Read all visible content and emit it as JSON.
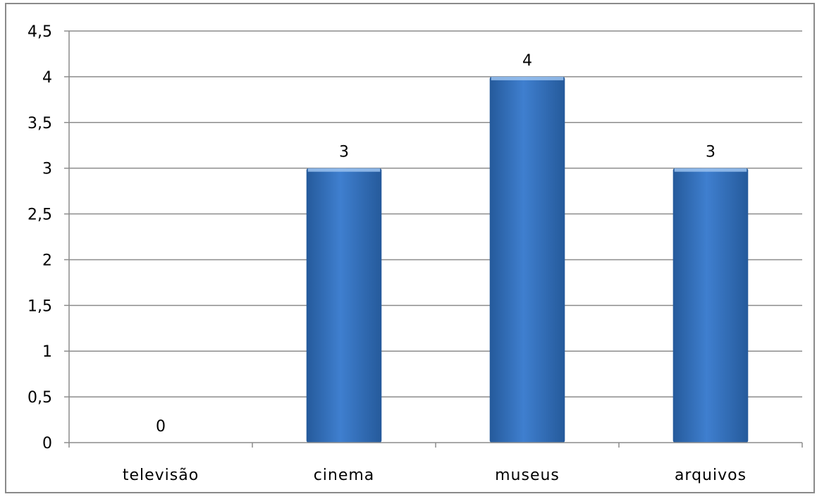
{
  "chart_data": {
    "type": "bar",
    "title": "",
    "xlabel": "",
    "ylabel": "",
    "categories": [
      "televisão",
      "cinema",
      "museus",
      "arquivos"
    ],
    "values": [
      0,
      3,
      4,
      3
    ],
    "data_labels": [
      "0",
      "3",
      "4",
      "3"
    ],
    "ylim": [
      0,
      4.5
    ],
    "yticks": [
      0,
      0.5,
      1,
      1.5,
      2,
      2.5,
      3,
      3.5,
      4,
      4.5
    ],
    "ytick_labels": [
      "0",
      "0,5",
      "1",
      "1,5",
      "2",
      "2,5",
      "3",
      "3,5",
      "4",
      "4,5"
    ],
    "grid": true,
    "legend": "none",
    "bar_color": "#3f7fcf",
    "bar_color_dark": "#255a9b"
  }
}
